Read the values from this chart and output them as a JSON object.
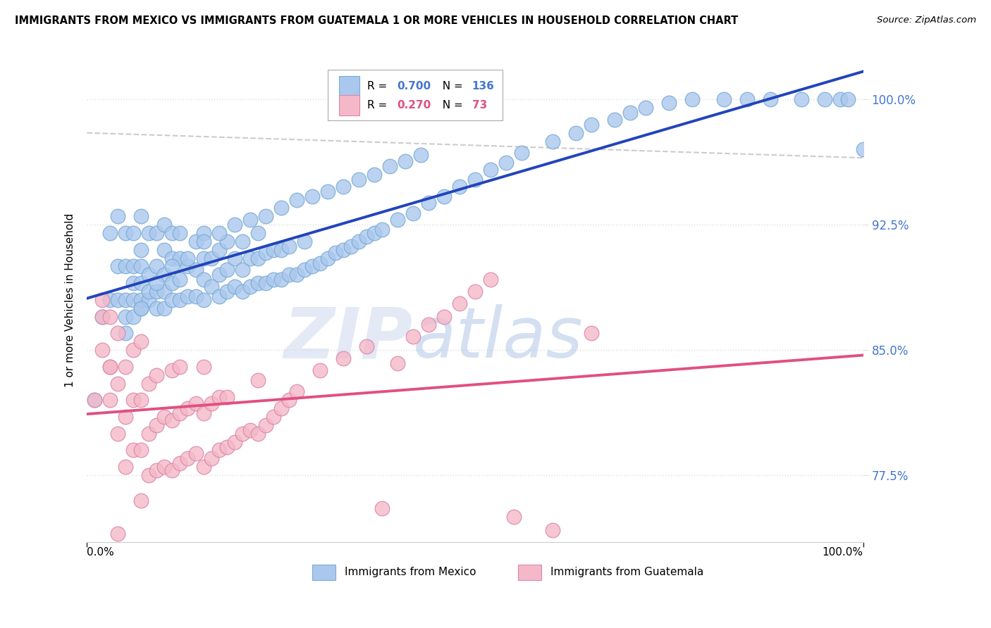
{
  "title": "IMMIGRANTS FROM MEXICO VS IMMIGRANTS FROM GUATEMALA 1 OR MORE VEHICLES IN HOUSEHOLD CORRELATION CHART",
  "source": "Source: ZipAtlas.com",
  "ylabel": "1 or more Vehicles in Household",
  "ytick_labels": [
    "77.5%",
    "85.0%",
    "92.5%",
    "100.0%"
  ],
  "ytick_values": [
    0.775,
    0.85,
    0.925,
    1.0
  ],
  "xlim": [
    0.0,
    1.0
  ],
  "ylim": [
    0.735,
    1.025
  ],
  "mexico_color": "#aac8ee",
  "mexico_edge_color": "#7aaad4",
  "guatemala_color": "#f5b8c8",
  "guatemala_edge_color": "#d888aa",
  "mexico_R": 0.7,
  "mexico_N": 136,
  "guatemala_R": 0.27,
  "guatemala_N": 73,
  "watermark_zip": "ZIP",
  "watermark_atlas": "atlas",
  "legend_label_mexico": "Immigrants from Mexico",
  "legend_label_guatemala": "Immigrants from Guatemala",
  "mexico_line_color": "#2244bb",
  "guatemala_line_color": "#e05080",
  "dashed_line_color": "#cccccc",
  "grid_color": "#dddddd",
  "ytick_color": "#4477cc",
  "mexico_scatter_x": [
    0.01,
    0.02,
    0.03,
    0.03,
    0.04,
    0.04,
    0.04,
    0.05,
    0.05,
    0.05,
    0.05,
    0.06,
    0.06,
    0.06,
    0.06,
    0.06,
    0.07,
    0.07,
    0.07,
    0.07,
    0.07,
    0.07,
    0.08,
    0.08,
    0.08,
    0.08,
    0.09,
    0.09,
    0.09,
    0.09,
    0.1,
    0.1,
    0.1,
    0.1,
    0.1,
    0.11,
    0.11,
    0.11,
    0.11,
    0.12,
    0.12,
    0.12,
    0.12,
    0.13,
    0.13,
    0.14,
    0.14,
    0.14,
    0.15,
    0.15,
    0.15,
    0.15,
    0.16,
    0.16,
    0.17,
    0.17,
    0.17,
    0.18,
    0.18,
    0.18,
    0.19,
    0.19,
    0.2,
    0.2,
    0.2,
    0.21,
    0.21,
    0.22,
    0.22,
    0.22,
    0.23,
    0.23,
    0.24,
    0.24,
    0.25,
    0.25,
    0.26,
    0.26,
    0.27,
    0.28,
    0.28,
    0.29,
    0.3,
    0.31,
    0.32,
    0.33,
    0.34,
    0.35,
    0.36,
    0.37,
    0.38,
    0.4,
    0.42,
    0.44,
    0.46,
    0.48,
    0.5,
    0.52,
    0.54,
    0.56,
    0.6,
    0.63,
    0.65,
    0.68,
    0.7,
    0.72,
    0.75,
    0.78,
    0.82,
    0.85,
    0.88,
    0.92,
    0.95,
    0.97,
    0.98,
    1.0,
    0.05,
    0.07,
    0.09,
    0.11,
    0.13,
    0.15,
    0.17,
    0.19,
    0.21,
    0.23,
    0.25,
    0.27,
    0.29,
    0.31,
    0.33,
    0.35,
    0.37,
    0.39,
    0.41,
    0.43
  ],
  "mexico_scatter_y": [
    0.82,
    0.87,
    0.88,
    0.92,
    0.88,
    0.9,
    0.93,
    0.87,
    0.88,
    0.9,
    0.92,
    0.87,
    0.88,
    0.89,
    0.9,
    0.92,
    0.875,
    0.88,
    0.89,
    0.9,
    0.91,
    0.93,
    0.88,
    0.885,
    0.895,
    0.92,
    0.875,
    0.885,
    0.9,
    0.92,
    0.875,
    0.885,
    0.895,
    0.91,
    0.925,
    0.88,
    0.89,
    0.905,
    0.92,
    0.88,
    0.892,
    0.905,
    0.92,
    0.882,
    0.9,
    0.882,
    0.898,
    0.915,
    0.88,
    0.892,
    0.905,
    0.92,
    0.888,
    0.905,
    0.882,
    0.895,
    0.91,
    0.885,
    0.898,
    0.915,
    0.888,
    0.905,
    0.885,
    0.898,
    0.915,
    0.888,
    0.905,
    0.89,
    0.905,
    0.92,
    0.89,
    0.908,
    0.892,
    0.91,
    0.892,
    0.91,
    0.895,
    0.912,
    0.895,
    0.898,
    0.915,
    0.9,
    0.902,
    0.905,
    0.908,
    0.91,
    0.912,
    0.915,
    0.918,
    0.92,
    0.922,
    0.928,
    0.932,
    0.938,
    0.942,
    0.948,
    0.952,
    0.958,
    0.962,
    0.968,
    0.975,
    0.98,
    0.985,
    0.988,
    0.992,
    0.995,
    0.998,
    1.0,
    1.0,
    1.0,
    1.0,
    1.0,
    1.0,
    1.0,
    1.0,
    0.97,
    0.86,
    0.875,
    0.89,
    0.9,
    0.905,
    0.915,
    0.92,
    0.925,
    0.928,
    0.93,
    0.935,
    0.94,
    0.942,
    0.945,
    0.948,
    0.952,
    0.955,
    0.96,
    0.963,
    0.967
  ],
  "guatemala_scatter_x": [
    0.01,
    0.02,
    0.02,
    0.03,
    0.03,
    0.03,
    0.04,
    0.04,
    0.04,
    0.05,
    0.05,
    0.05,
    0.06,
    0.06,
    0.06,
    0.07,
    0.07,
    0.07,
    0.07,
    0.08,
    0.08,
    0.08,
    0.09,
    0.09,
    0.09,
    0.1,
    0.1,
    0.11,
    0.11,
    0.11,
    0.12,
    0.12,
    0.12,
    0.13,
    0.13,
    0.14,
    0.14,
    0.15,
    0.15,
    0.15,
    0.16,
    0.16,
    0.17,
    0.17,
    0.18,
    0.18,
    0.19,
    0.2,
    0.21,
    0.22,
    0.22,
    0.23,
    0.24,
    0.25,
    0.26,
    0.27,
    0.3,
    0.33,
    0.36,
    0.38,
    0.4,
    0.42,
    0.44,
    0.46,
    0.48,
    0.5,
    0.52,
    0.55,
    0.6,
    0.65,
    0.02,
    0.03,
    0.04
  ],
  "guatemala_scatter_y": [
    0.82,
    0.85,
    0.87,
    0.82,
    0.84,
    0.87,
    0.8,
    0.83,
    0.86,
    0.78,
    0.81,
    0.84,
    0.79,
    0.82,
    0.85,
    0.76,
    0.79,
    0.82,
    0.855,
    0.775,
    0.8,
    0.83,
    0.778,
    0.805,
    0.835,
    0.78,
    0.81,
    0.778,
    0.808,
    0.838,
    0.782,
    0.812,
    0.84,
    0.785,
    0.815,
    0.788,
    0.818,
    0.78,
    0.812,
    0.84,
    0.785,
    0.818,
    0.79,
    0.822,
    0.792,
    0.822,
    0.795,
    0.8,
    0.802,
    0.8,
    0.832,
    0.805,
    0.81,
    0.815,
    0.82,
    0.825,
    0.838,
    0.845,
    0.852,
    0.755,
    0.842,
    0.858,
    0.865,
    0.87,
    0.878,
    0.885,
    0.892,
    0.75,
    0.742,
    0.86,
    0.88,
    0.84,
    0.74
  ]
}
